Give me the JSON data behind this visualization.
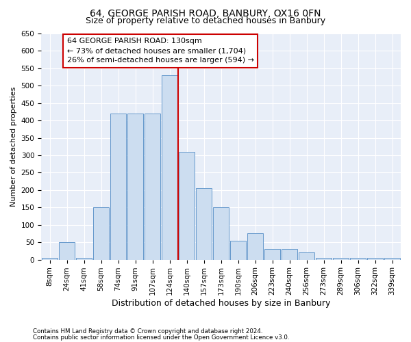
{
  "title": "64, GEORGE PARISH ROAD, BANBURY, OX16 0FN",
  "subtitle": "Size of property relative to detached houses in Banbury",
  "xlabel": "Distribution of detached houses by size in Banbury",
  "ylabel": "Number of detached properties",
  "bin_labels": [
    "8sqm",
    "24sqm",
    "41sqm",
    "58sqm",
    "74sqm",
    "91sqm",
    "107sqm",
    "124sqm",
    "140sqm",
    "157sqm",
    "173sqm",
    "190sqm",
    "206sqm",
    "223sqm",
    "240sqm",
    "256sqm",
    "273sqm",
    "289sqm",
    "306sqm",
    "322sqm",
    "339sqm"
  ],
  "bar_heights": [
    5,
    50,
    5,
    150,
    420,
    420,
    420,
    530,
    310,
    205,
    150,
    55,
    75,
    30,
    30,
    20,
    5,
    5,
    5,
    5,
    5
  ],
  "bar_color": "#ccddf0",
  "bar_edge_color": "#6699cc",
  "vline_x": 7.5,
  "vline_color": "#cc0000",
  "annotation_text": "64 GEORGE PARISH ROAD: 130sqm\n← 73% of detached houses are smaller (1,704)\n26% of semi-detached houses are larger (594) →",
  "annotation_box_color": "#cc0000",
  "ylim": [
    0,
    650
  ],
  "yticks": [
    0,
    50,
    100,
    150,
    200,
    250,
    300,
    350,
    400,
    450,
    500,
    550,
    600,
    650
  ],
  "footnote1": "Contains HM Land Registry data © Crown copyright and database right 2024.",
  "footnote2": "Contains public sector information licensed under the Open Government Licence v3.0.",
  "bg_color": "#e8eef8",
  "grid_color": "#ffffff",
  "title_fontsize": 10,
  "subtitle_fontsize": 9,
  "xlabel_fontsize": 9,
  "ylabel_fontsize": 8,
  "tick_fontsize": 7.5,
  "annotation_fontsize": 8
}
